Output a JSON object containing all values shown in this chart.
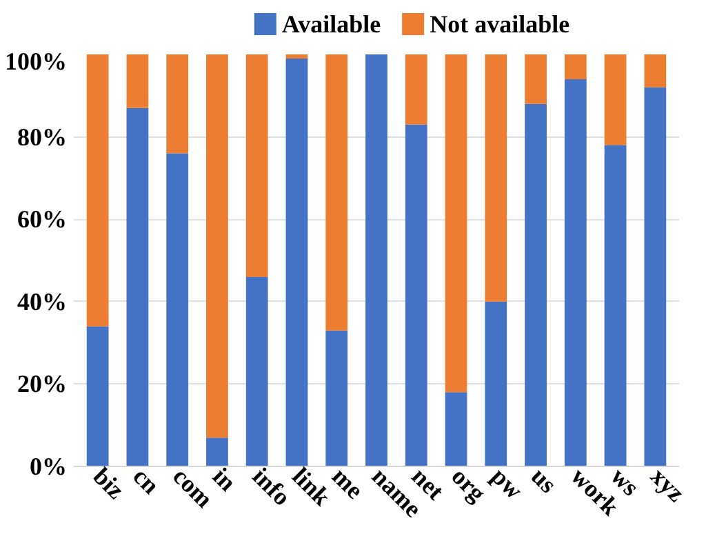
{
  "chart_data": {
    "type": "bar",
    "stacked": true,
    "categories": [
      "biz",
      "cn",
      "com",
      "in",
      "info",
      "link",
      "me",
      "name",
      "net",
      "org",
      "pw",
      "us",
      "work",
      "ws",
      "xyz"
    ],
    "series": [
      {
        "name": "Available",
        "color": "#4472c4",
        "values": [
          34,
          87,
          76,
          7,
          46,
          99,
          33,
          100,
          83,
          18,
          40,
          88,
          94,
          78,
          92
        ]
      },
      {
        "name": "Not available",
        "color": "#ed7d31",
        "values": [
          66,
          13,
          24,
          93,
          54,
          1,
          67,
          0,
          17,
          82,
          60,
          12,
          6,
          22,
          8
        ]
      }
    ],
    "ylim": [
      0,
      100
    ],
    "yticks": [
      {
        "value": 0,
        "label": "0%"
      },
      {
        "value": 20,
        "label": "20%"
      },
      {
        "value": 40,
        "label": "40%"
      },
      {
        "value": 60,
        "label": "60%"
      },
      {
        "value": 80,
        "label": "80%"
      },
      {
        "value": 100,
        "label": "100%"
      }
    ],
    "grid": "y",
    "legend": "top"
  }
}
